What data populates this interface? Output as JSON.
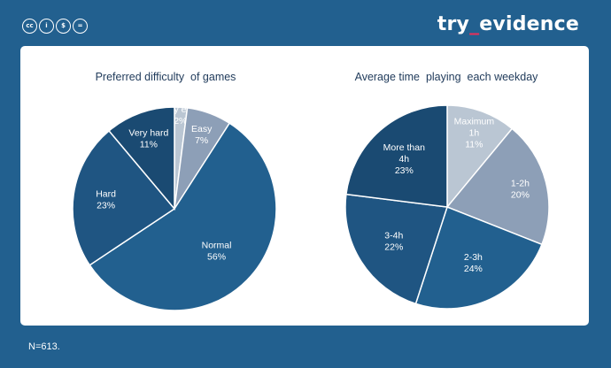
{
  "header": {
    "license_icons": [
      "cc-icon",
      "by-icon",
      "nc-icon",
      "nd-icon"
    ],
    "license_glyphs": [
      "cc",
      "i",
      "$",
      "="
    ],
    "brand_left": "try",
    "brand_sep": "_",
    "brand_right": "evidence"
  },
  "footer": {
    "note": "N=613."
  },
  "colors": {
    "background": "#22608f",
    "card": "#ffffff",
    "brand_accent": "#e8305a",
    "very_easy": "#bac6d3",
    "easy": "#8d9fb7",
    "normal": "#22608f",
    "hard": "#1f5582",
    "very_hard": "#1a4a72",
    "maximum_1h": "#bac6d3",
    "h1_2": "#8d9fb7",
    "h2_3": "#22608f",
    "h3_4": "#1f5582",
    "more_4h": "#1a4a72"
  },
  "chart_data": [
    {
      "type": "pie",
      "title": "Preferred difficulty  of games",
      "slices": [
        {
          "label": [
            "Very easy"
          ],
          "value": 2,
          "display": "2%",
          "color": "#bac6d3",
          "text_color": "#ffffff"
        },
        {
          "label": [
            "Easy"
          ],
          "value": 7,
          "display": "7%",
          "color": "#8d9fb7",
          "text_color": "#ffffff"
        },
        {
          "label": [
            "Normal"
          ],
          "value": 56,
          "display": "56%",
          "color": "#22608f",
          "text_color": "#ffffff"
        },
        {
          "label": [
            "Hard"
          ],
          "value": 23,
          "display": "23%",
          "color": "#1f5582",
          "text_color": "#ffffff"
        },
        {
          "label": [
            "Very hard"
          ],
          "value": 11,
          "display": "11%",
          "color": "#1a4a72",
          "text_color": "#ffffff"
        }
      ]
    },
    {
      "type": "pie",
      "title": "Average time  playing  each weekday",
      "slices": [
        {
          "label": [
            "Maximum",
            "1h"
          ],
          "value": 11,
          "display": "11%",
          "color": "#bac6d3",
          "text_color": "#ffffff"
        },
        {
          "label": [
            "1-2h"
          ],
          "value": 20,
          "display": "20%",
          "color": "#8d9fb7",
          "text_color": "#ffffff"
        },
        {
          "label": [
            "2-3h"
          ],
          "value": 24,
          "display": "24%",
          "color": "#22608f",
          "text_color": "#ffffff"
        },
        {
          "label": [
            "3-4h"
          ],
          "value": 22,
          "display": "22%",
          "color": "#1f5582",
          "text_color": "#ffffff"
        },
        {
          "label": [
            "More than",
            "4h"
          ],
          "value": 23,
          "display": "23%",
          "color": "#1a4a72",
          "text_color": "#ffffff"
        }
      ]
    }
  ]
}
